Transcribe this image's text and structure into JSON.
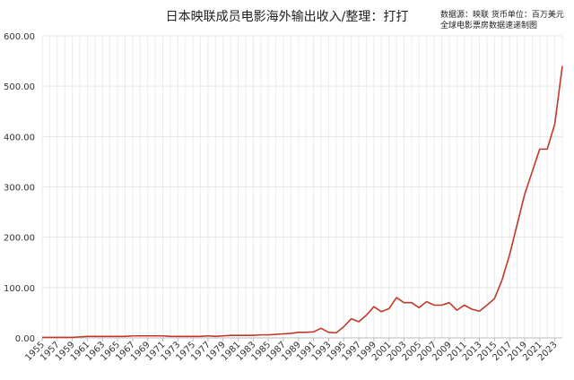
{
  "chart_data": {
    "type": "line",
    "title": "日本映联成员电影海外输出收入/整理：打打",
    "source_line1": "数据源：映联 货币单位：百万美元",
    "source_line2": "全球电影票房数据速递制图",
    "xlabel": "",
    "ylabel": "",
    "ylim": [
      0,
      600
    ],
    "y_ticks": [
      "0.00",
      "100.00",
      "200.00",
      "300.00",
      "400.00",
      "500.00",
      "600.00"
    ],
    "x_tick_labels": [
      "1955",
      "1957",
      "1959",
      "1961",
      "1963",
      "1965",
      "1967",
      "1969",
      "1971",
      "1973",
      "1975",
      "1977",
      "1979",
      "1981",
      "1983",
      "1985",
      "1987",
      "1989",
      "1991",
      "1993",
      "1995",
      "1997",
      "1999",
      "2001",
      "2003",
      "2005",
      "2007",
      "2009",
      "2011",
      "2013",
      "2015",
      "2017",
      "2019",
      "2021",
      "2023"
    ],
    "grid": true,
    "series": [
      {
        "color": "#c0392b",
        "x": [
          1955,
          1956,
          1957,
          1958,
          1959,
          1960,
          1961,
          1962,
          1963,
          1964,
          1965,
          1966,
          1967,
          1968,
          1969,
          1970,
          1971,
          1972,
          1973,
          1974,
          1975,
          1976,
          1977,
          1978,
          1979,
          1980,
          1981,
          1982,
          1983,
          1984,
          1985,
          1986,
          1987,
          1988,
          1989,
          1990,
          1991,
          1992,
          1993,
          1994,
          1995,
          1996,
          1997,
          1998,
          1999,
          2000,
          2001,
          2002,
          2003,
          2004,
          2005,
          2006,
          2007,
          2008,
          2009,
          2010,
          2011,
          2012,
          2013,
          2014,
          2015,
          2016,
          2017,
          2018,
          2019,
          2020,
          2021,
          2022,
          2023,
          2024
        ],
        "values": [
          1,
          1,
          1,
          1,
          1,
          2,
          3,
          3,
          3,
          3,
          3,
          3,
          4,
          4,
          4,
          4,
          4,
          3,
          3,
          3,
          3,
          3,
          4,
          3,
          4,
          5,
          5,
          5,
          5,
          6,
          6,
          7,
          8,
          9,
          11,
          11,
          12,
          19,
          11,
          10,
          22,
          38,
          32,
          45,
          62,
          52,
          58,
          80,
          70,
          70,
          60,
          72,
          65,
          65,
          70,
          55,
          65,
          57,
          53,
          65,
          78,
          115,
          165,
          225,
          285,
          330,
          375,
          375,
          425,
          540
        ]
      }
    ]
  }
}
